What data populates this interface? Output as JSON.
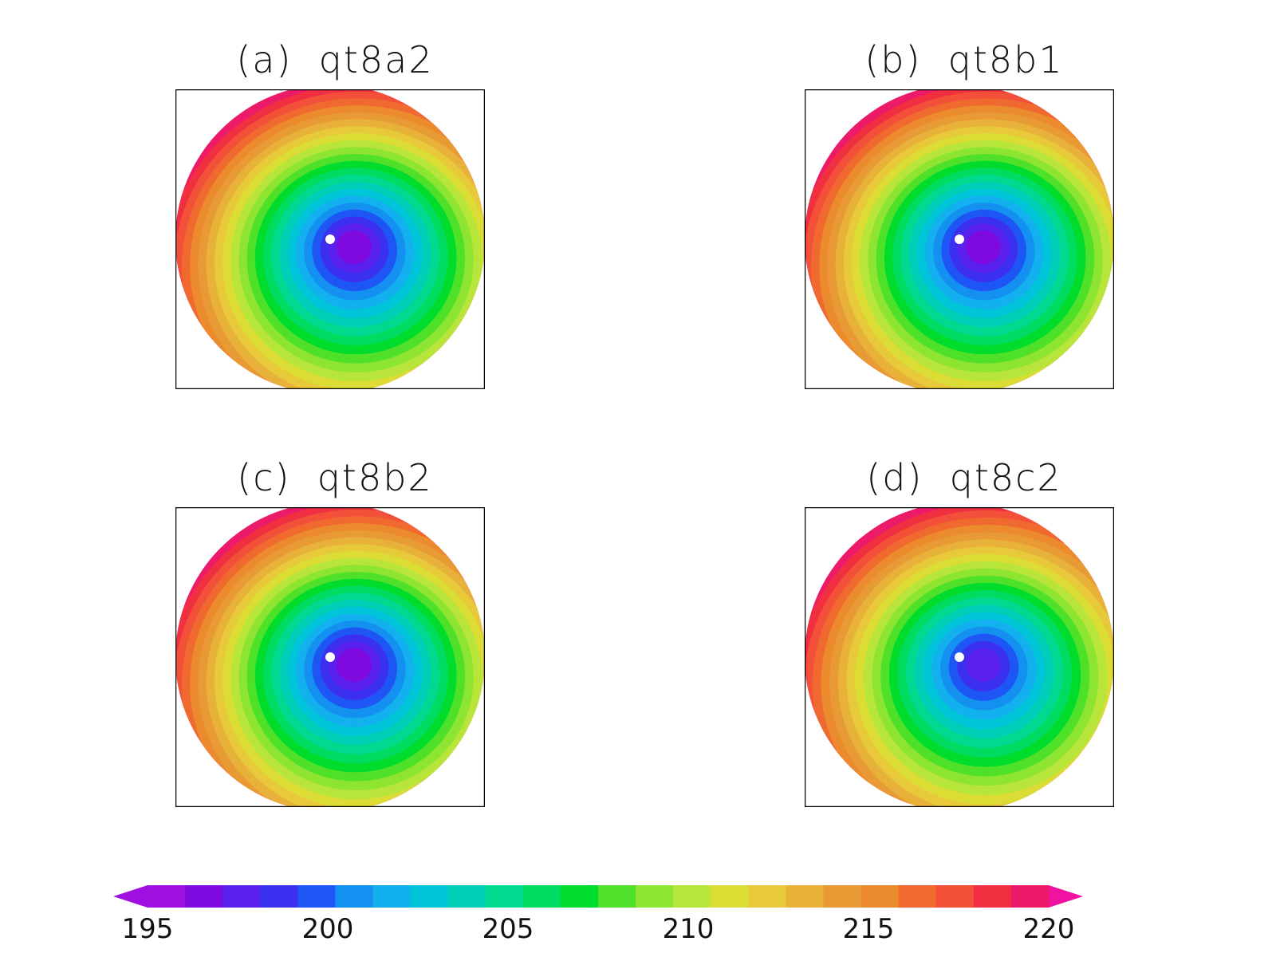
{
  "chart_data": {
    "type": "heatmap",
    "projection": "polar-stereographic",
    "panels": [
      {
        "id": "a",
        "title": "(a)  qt8a2",
        "center_min": 196.5,
        "rim_max": 219,
        "asymmetry": "warm-north-west"
      },
      {
        "id": "b",
        "title": "(b)  qt8b1",
        "center_min": 196.5,
        "rim_max": 219,
        "asymmetry": "warm-north-west"
      },
      {
        "id": "c",
        "title": "(c)  qt8b2",
        "center_min": 196.5,
        "rim_max": 219,
        "asymmetry": "warm-north-west"
      },
      {
        "id": "d",
        "title": "(d)  qt8c2",
        "center_min": 197.5,
        "rim_max": 219,
        "asymmetry": "warm-north-west"
      }
    ],
    "colorbar": {
      "min": 195,
      "max": 220,
      "step": 1,
      "tick_labels": [
        "195",
        "200",
        "205",
        "210",
        "215",
        "220"
      ],
      "extend": "both",
      "colors": [
        "#9E0FE0",
        "#7F0AE0",
        "#5A20EE",
        "#3C30F0",
        "#1E55F5",
        "#1490F0",
        "#12B0EE",
        "#00C5D8",
        "#00CFB8",
        "#00D990",
        "#00DC62",
        "#00DC2C",
        "#4FE02A",
        "#8DE532",
        "#B8E53A",
        "#DCDD34",
        "#E8C93A",
        "#E8B23A",
        "#E89A34",
        "#EC8A2E",
        "#F06A30",
        "#F25038",
        "#F03040",
        "#EC1A68"
      ]
    }
  }
}
